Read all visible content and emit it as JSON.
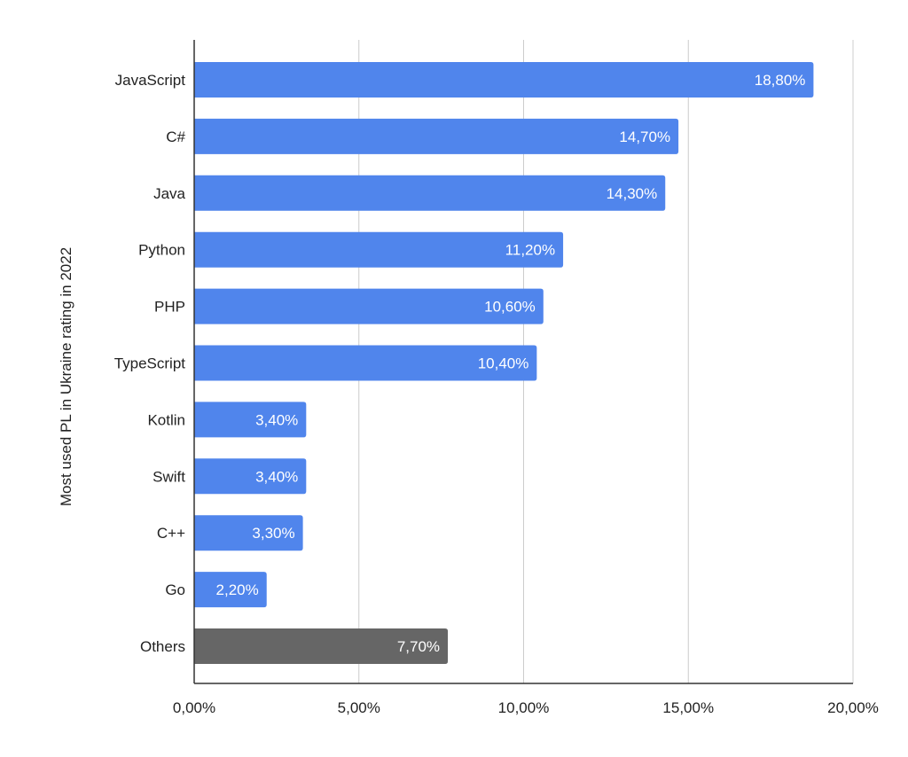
{
  "chart_data": {
    "type": "bar",
    "orientation": "horizontal",
    "categories": [
      "JavaScript",
      "C#",
      "Java",
      "Python",
      "PHP",
      "TypeScript",
      "Kotlin",
      "Swift",
      "C++",
      "Go",
      "Others"
    ],
    "values": [
      18.8,
      14.7,
      14.3,
      11.2,
      10.6,
      10.4,
      3.4,
      3.4,
      3.3,
      2.2,
      7.7
    ],
    "value_labels": [
      "18,80%",
      "14,70%",
      "14,30%",
      "11,20%",
      "10,60%",
      "10,40%",
      "3,40%",
      "3,40%",
      "3,30%",
      "2,20%",
      "7,70%"
    ],
    "bar_colors": [
      "#5085ec",
      "#5085ec",
      "#5085ec",
      "#5085ec",
      "#5085ec",
      "#5085ec",
      "#5085ec",
      "#5085ec",
      "#5085ec",
      "#5085ec",
      "#666666"
    ],
    "title": "",
    "xlabel": "",
    "ylabel": "Most used PL in Ukraine rating in 2022",
    "xlim": [
      0,
      20
    ],
    "x_ticks": [
      0,
      5,
      10,
      15,
      20
    ],
    "x_tick_labels": [
      "0,00%",
      "5,00%",
      "10,00%",
      "15,00%",
      "20,00%"
    ],
    "grid": true,
    "legend": "none"
  }
}
